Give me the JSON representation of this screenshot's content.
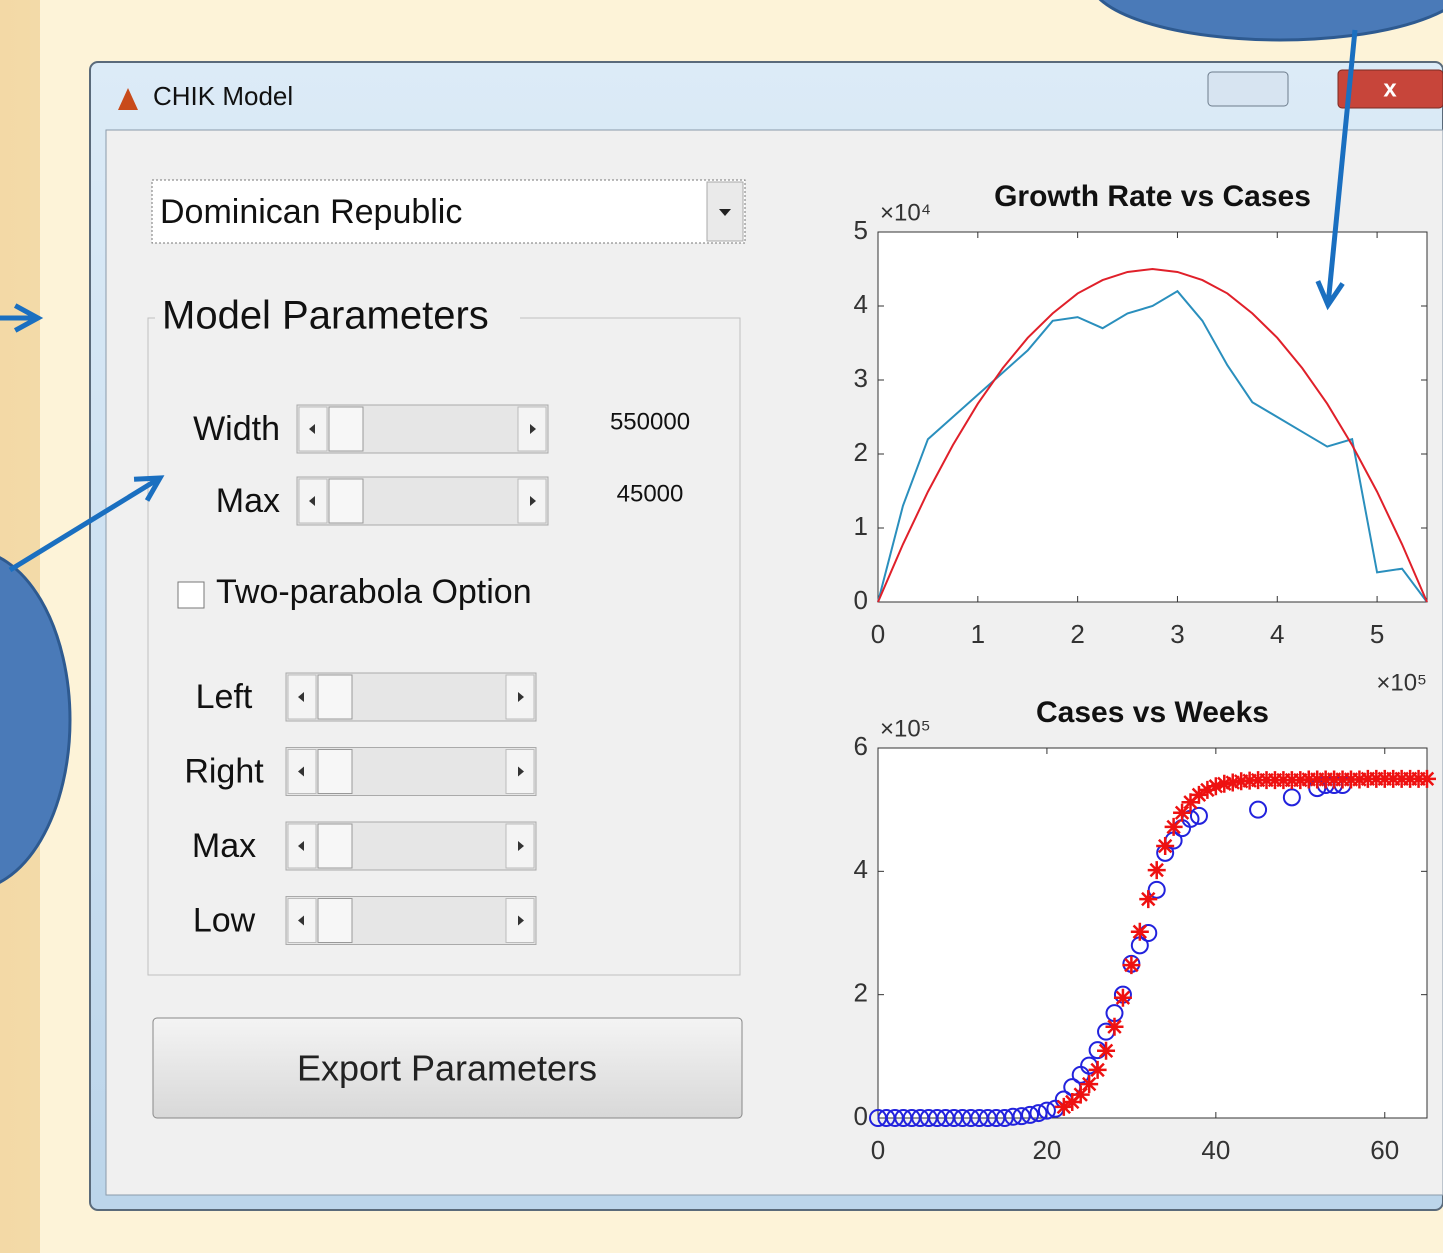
{
  "window": {
    "title": "CHIK Model"
  },
  "dropdown": {
    "selected": "Dominican Republic"
  },
  "panel": {
    "title": "Model Parameters",
    "sliders": [
      {
        "label": "Width",
        "value": 550000
      },
      {
        "label": "Max",
        "value": 45000
      }
    ],
    "checkbox": {
      "label": "Two-parabola Option"
    },
    "option_sliders": [
      {
        "label": "Left"
      },
      {
        "label": "Right"
      },
      {
        "label": "Max"
      },
      {
        "label": "Low"
      }
    ]
  },
  "button": {
    "label": "Export Parameters"
  },
  "chart_data": [
    {
      "type": "line",
      "title": "Growth Rate vs Cases",
      "x_exponent": "×10⁵",
      "y_exponent": "×10⁴",
      "xlim": [
        0,
        5.5
      ],
      "ylim": [
        0,
        5
      ],
      "xticks": [
        0,
        1,
        2,
        3,
        4,
        5
      ],
      "yticks": [
        0,
        1,
        2,
        3,
        4,
        5
      ],
      "x": [
        0,
        0.25,
        0.5,
        0.75,
        1,
        1.25,
        1.5,
        1.75,
        2,
        2.25,
        2.5,
        2.75,
        3,
        3.25,
        3.5,
        3.75,
        4,
        4.25,
        4.5,
        4.75,
        5,
        5.25,
        5.5
      ],
      "series": [
        {
          "color": "#2a8fbd",
          "values": [
            0,
            1.3,
            2.2,
            2.5,
            2.8,
            3.1,
            3.4,
            3.8,
            3.85,
            3.7,
            3.9,
            4.0,
            4.2,
            3.8,
            3.2,
            2.7,
            2.5,
            2.3,
            2.1,
            2.2,
            0.4,
            0.45,
            0
          ]
        },
        {
          "color": "#e0202a",
          "values": [
            0,
            0.78,
            1.49,
            2.12,
            2.68,
            3.16,
            3.57,
            3.9,
            4.17,
            4.35,
            4.46,
            4.5,
            4.46,
            4.35,
            4.17,
            3.9,
            3.57,
            3.16,
            2.68,
            2.12,
            1.49,
            0.78,
            0
          ]
        }
      ]
    },
    {
      "type": "scatter",
      "title": "Cases vs Weeks",
      "y_exponent": "×10⁵",
      "xlim": [
        0,
        65
      ],
      "ylim": [
        0,
        6
      ],
      "xticks": [
        0,
        20,
        40,
        60
      ],
      "yticks": [
        0,
        2,
        4,
        6
      ],
      "series": [
        {
          "color": "#2222dd",
          "marker": "o",
          "x": [
            0,
            1,
            2,
            3,
            4,
            5,
            6,
            7,
            8,
            9,
            10,
            11,
            12,
            13,
            14,
            15,
            16,
            17,
            18,
            19,
            20,
            21,
            22,
            23,
            24,
            25,
            26,
            27,
            28,
            29,
            30,
            31,
            32,
            33,
            34,
            35,
            36,
            37,
            38,
            45,
            49,
            52,
            53,
            54,
            55
          ],
          "values": [
            0,
            0,
            0,
            0,
            0,
            0,
            0,
            0,
            0,
            0,
            0,
            0,
            0,
            0,
            0,
            0,
            0.02,
            0.03,
            0.05,
            0.08,
            0.12,
            0.15,
            0.3,
            0.5,
            0.7,
            0.85,
            1.1,
            1.4,
            1.7,
            2.0,
            2.5,
            2.8,
            3.0,
            3.7,
            4.3,
            4.5,
            4.7,
            4.85,
            4.9,
            5.0,
            5.2,
            5.35,
            5.4,
            5.4,
            5.4
          ]
        },
        {
          "color": "#ee1111",
          "marker": "*",
          "x": [
            22,
            23,
            24,
            25,
            26,
            27,
            28,
            29,
            30,
            31,
            32,
            33,
            34,
            35,
            36,
            37,
            38,
            39,
            40,
            41,
            42,
            43,
            44,
            45,
            46,
            47,
            48,
            49,
            50,
            51,
            52,
            53,
            54,
            55,
            56,
            57,
            58,
            59,
            60,
            61,
            62,
            63,
            64,
            65
          ],
          "values": [
            0.18,
            0.26,
            0.38,
            0.55,
            0.78,
            1.09,
            1.48,
            1.95,
            2.48,
            3.02,
            3.55,
            4.02,
            4.41,
            4.72,
            4.95,
            5.12,
            5.24,
            5.32,
            5.38,
            5.42,
            5.44,
            5.46,
            5.47,
            5.48,
            5.48,
            5.48,
            5.48,
            5.48,
            5.48,
            5.49,
            5.49,
            5.49,
            5.49,
            5.49,
            5.49,
            5.49,
            5.5,
            5.5,
            5.5,
            5.5,
            5.5,
            5.5,
            5.5,
            5.5
          ]
        }
      ]
    }
  ]
}
